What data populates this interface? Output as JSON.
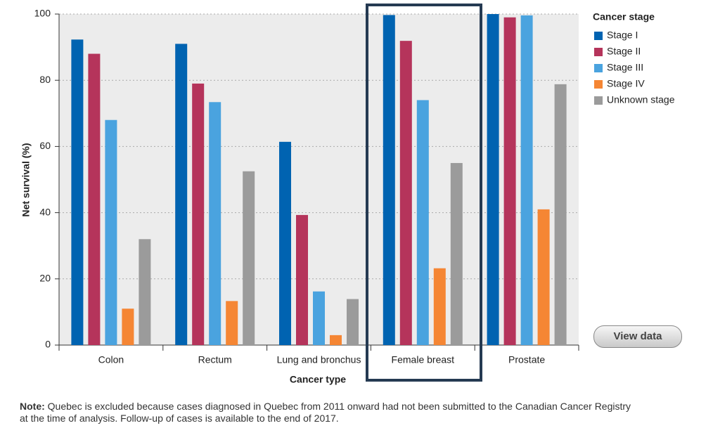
{
  "chart_data": {
    "type": "bar",
    "y_label": "Net survival (%)",
    "x_label": "Cancer type",
    "categories": [
      "Colon",
      "Rectum",
      "Lung and bronchus",
      "Female breast",
      "Prostate"
    ],
    "series": [
      {
        "name": "Stage I",
        "color": "#0063b1",
        "values": [
          92.3,
          91,
          61.4,
          99.7,
          100
        ]
      },
      {
        "name": "Stage II",
        "color": "#b5345b",
        "values": [
          88,
          79,
          39.3,
          91.9,
          99
        ]
      },
      {
        "name": "Stage III",
        "color": "#4aa3df",
        "values": [
          68,
          73.4,
          16.2,
          74,
          99.6
        ]
      },
      {
        "name": "Stage IV",
        "color": "#f58634",
        "values": [
          11,
          13.3,
          3,
          23.2,
          41
        ]
      },
      {
        "name": "Unknown stage",
        "color": "#9b9b9b",
        "values": [
          32,
          52.5,
          13.9,
          55,
          78.8
        ]
      }
    ],
    "legend_title": "Cancer stage",
    "legend": "right",
    "ylim": [
      0,
      100
    ],
    "yticks": [
      0,
      20,
      40,
      60,
      80,
      100
    ],
    "grid": true
  },
  "note": {
    "label": "Note:",
    "lines": [
      "Quebec is excluded because cases diagnosed in Quebec from 2011 onward had not been submitted to the Canadian Cancer Registry",
      "at the time of analysis. Follow-up of cases is available to the end of 2017."
    ]
  },
  "button": "View data"
}
